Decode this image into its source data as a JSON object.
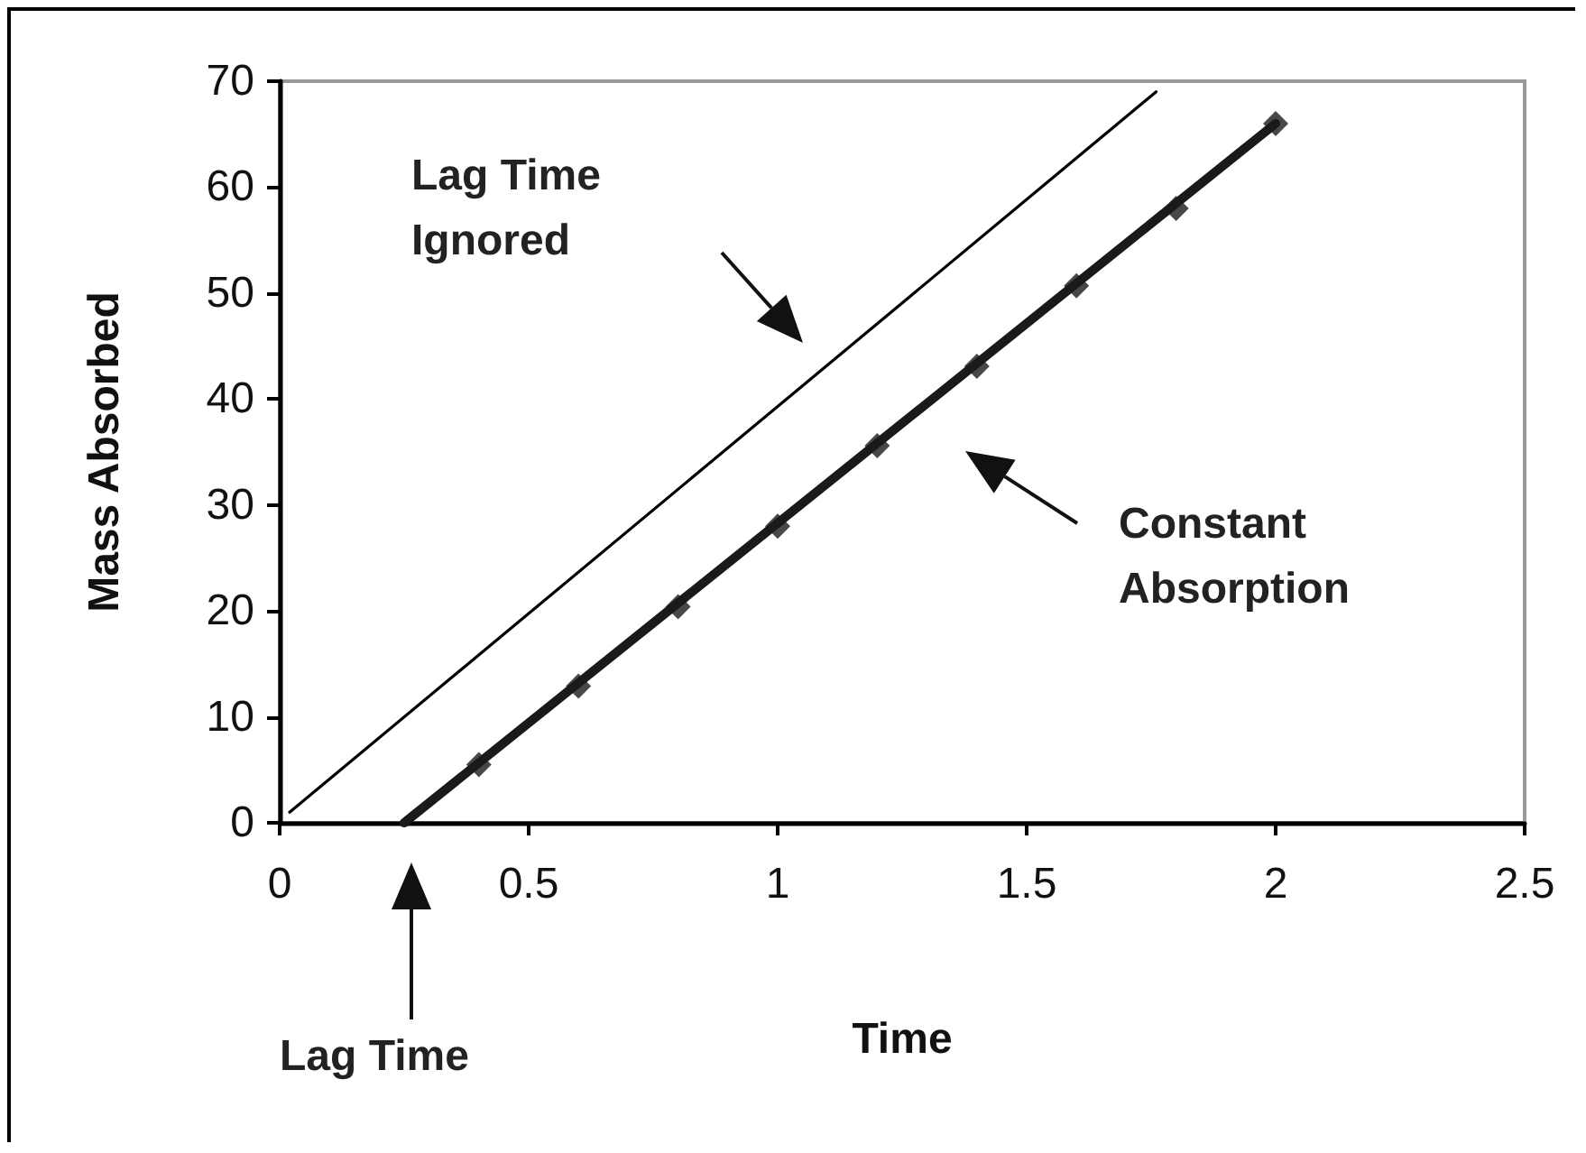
{
  "chart_data": {
    "type": "line",
    "xlabel": "Time",
    "ylabel": "Mass Absorbed",
    "xlim": [
      0,
      2.5
    ],
    "xticks": [
      0,
      0.5,
      1,
      1.5,
      2,
      2.5
    ],
    "ylim": [
      0,
      70
    ],
    "yticks": [
      0,
      10,
      20,
      30,
      40,
      50,
      60,
      70
    ],
    "grid": false,
    "series": [
      {
        "color": "#000000",
        "marker": "none",
        "x": [
          0.02,
          1.76
        ],
        "values": [
          1,
          69
        ]
      },
      {
        "color": "#1a1a1a",
        "marker": "none",
        "x": [
          0.25,
          2
        ],
        "values": [
          0,
          66
        ]
      },
      {
        "type": "scatter",
        "color": "#1a1a1a",
        "marker": "diamond",
        "x": [
          0.4,
          0.6,
          0.8,
          1,
          1.2,
          1.4,
          1.6,
          1.8,
          2
        ],
        "values": [
          5.5,
          12.9,
          20.4,
          28,
          35.6,
          43.1,
          50.7,
          58,
          66
        ]
      }
    ],
    "annotations": [
      "Lag Time Ignored",
      "Constant Absorption",
      "Lag Time"
    ]
  }
}
